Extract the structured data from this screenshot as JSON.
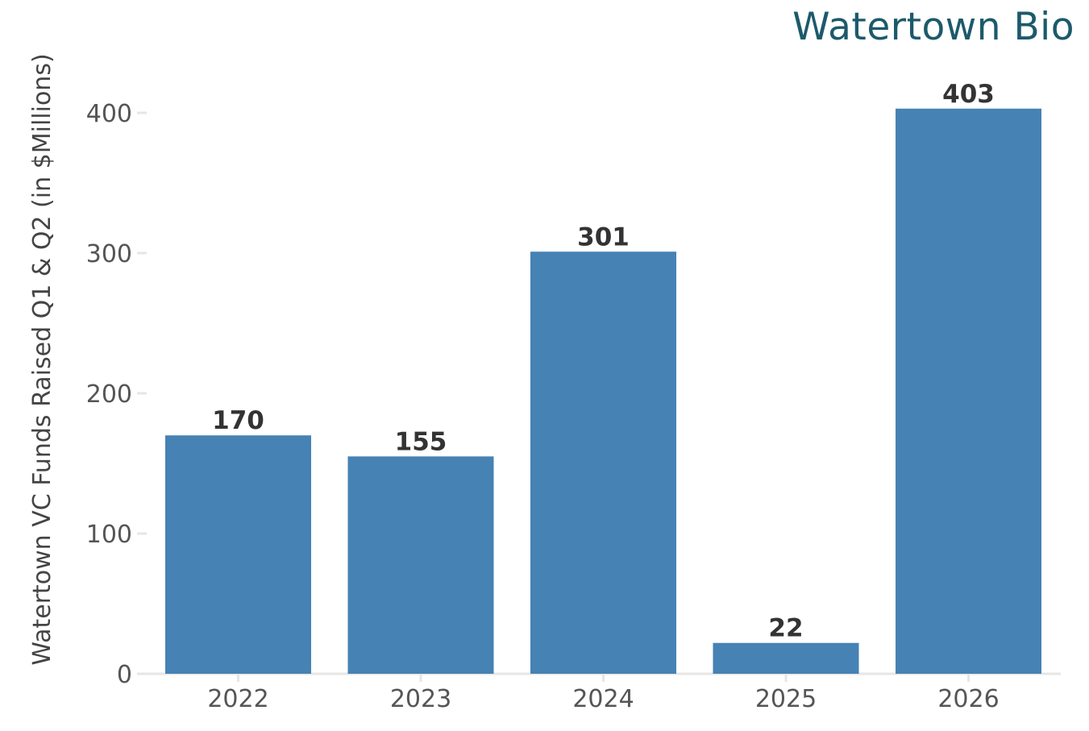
{
  "brand": {
    "name": "Watertown Bio",
    "color": "#1c5a6b"
  },
  "chart_data": {
    "type": "bar",
    "title": "",
    "xlabel": "",
    "ylabel": "Watertown VC Funds Raised Q1 & Q2 (in $Millions)",
    "categories": [
      "2022",
      "2023",
      "2024",
      "2025",
      "2026"
    ],
    "values": [
      170,
      155,
      301,
      22,
      403
    ],
    "data_labels": [
      "170",
      "155",
      "301",
      "22",
      "403"
    ],
    "ylim": [
      0,
      420
    ],
    "yticks": [
      0,
      100,
      200,
      300,
      400
    ],
    "ytick_labels": [
      "0",
      "100",
      "200",
      "300",
      "400"
    ],
    "grid": false,
    "legend": "none",
    "bar_color": "#4682b4",
    "axis_color": "#e6e6e6"
  }
}
